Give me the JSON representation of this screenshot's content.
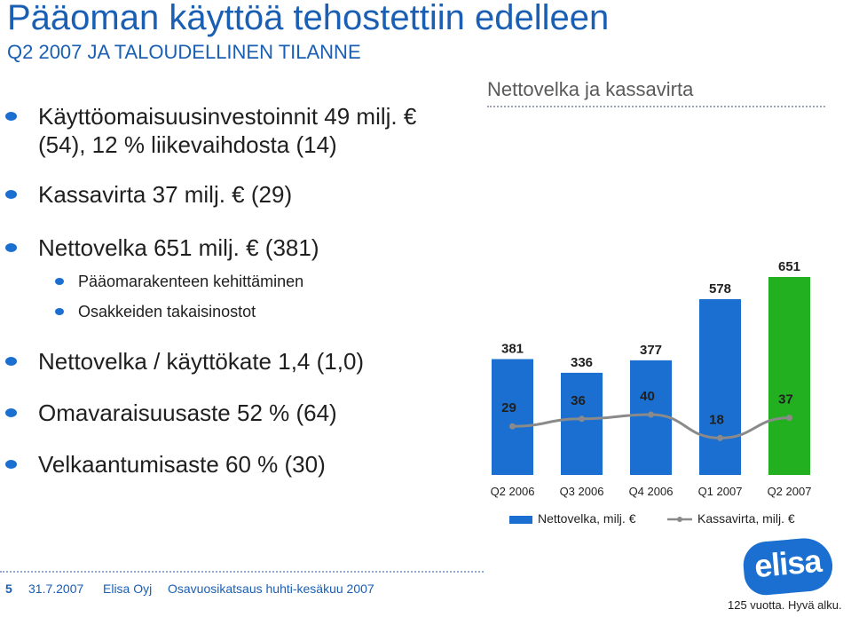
{
  "header": {
    "title": "Pääoman käyttöä tehostettiin edelleen",
    "subtitle": "Q2 2007 JA TALOUDELLINEN TILANNE"
  },
  "bullets": [
    {
      "line1": "Käyttöomaisuusinvestoinnit 49 milj. €",
      "line2": "(54), 12 % liikevaihdosta (14)"
    },
    {
      "text": "Kassavirta 37 milj. € (29)"
    },
    {
      "text": "Nettovelka 651 milj. € (381)"
    },
    {
      "text": "Pääomarakenteen kehittäminen"
    },
    {
      "text": "Osakkeiden takaisinostot"
    },
    {
      "text": "Nettovelka / käyttökate 1,4 (1,0)"
    },
    {
      "text": "Omavaraisuusaste 52 % (64)"
    },
    {
      "text": "Velkaantumisaste 60 % (30)"
    }
  ],
  "chart_data": {
    "type": "bar",
    "title": "Nettovelka ja kassavirta",
    "categories": [
      "Q2 2006",
      "Q3 2006",
      "Q4 2006",
      "Q1 2007",
      "Q2 2007"
    ],
    "series": [
      {
        "name": "Nettovelka, milj. €",
        "type": "bar",
        "values": [
          381,
          336,
          377,
          578,
          651
        ],
        "colors": [
          "#1a6fd0",
          "#1a6fd0",
          "#1a6fd0",
          "#1a6fd0",
          "#22b021"
        ]
      },
      {
        "name": "Kassavirta, milj. €",
        "type": "line",
        "values": [
          29,
          36,
          40,
          18,
          37
        ],
        "color": "#8a8a8a"
      }
    ],
    "legend": "bottom",
    "grid": false
  },
  "footer": {
    "page": "5",
    "date": "31.7.2007",
    "company": "Elisa Oyj",
    "doc": "Osavuosikatsaus huhti-kesäkuu 2007"
  },
  "logo": {
    "text": "elisa",
    "tagline": "125 vuotta. Hyvä alku."
  }
}
